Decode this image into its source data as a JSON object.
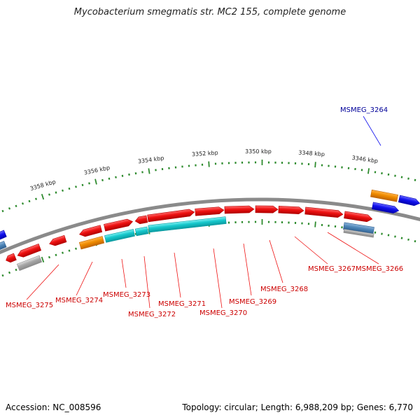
{
  "title": "Mycobacterium smegmatis str. MC2 155, complete genome",
  "footer": {
    "accession": "Accession: NC_008596",
    "stats": "Topology: circular; Length: 6,988,209 bp; Genes: 6,770"
  },
  "colors": {
    "red": "#ee1111",
    "orange": "#f08c00",
    "cyan": "#16c8cc",
    "blue": "#1111ee",
    "steel": "#4f86b8",
    "gray": "#a6a6a6",
    "backbone": "#8a8a8a",
    "tick": "#2e8b2e",
    "label_red": "#cc0000",
    "label_blue": "#000099"
  },
  "scale_ticks": [
    "3358 kbp",
    "3356 kbp",
    "3354 kbp",
    "3352 kbp",
    "3350 kbp",
    "3348 kbp",
    "3346 kbp"
  ],
  "gene_labels": [
    {
      "text": "MSMEG_3264",
      "color": "blue"
    },
    {
      "text": "MSMEG_3266",
      "color": "red"
    },
    {
      "text": "MSMEG_3267",
      "color": "red"
    },
    {
      "text": "MSMEG_3268",
      "color": "red"
    },
    {
      "text": "MSMEG_3269",
      "color": "red"
    },
    {
      "text": "MSMEG_3270",
      "color": "red"
    },
    {
      "text": "MSMEG_3271",
      "color": "red"
    },
    {
      "text": "MSMEG_3272",
      "color": "red"
    },
    {
      "text": "MSMEG_3273",
      "color": "red"
    },
    {
      "text": "MSMEG_3274",
      "color": "red"
    },
    {
      "text": "MSMEG_3275",
      "color": "red"
    }
  ]
}
